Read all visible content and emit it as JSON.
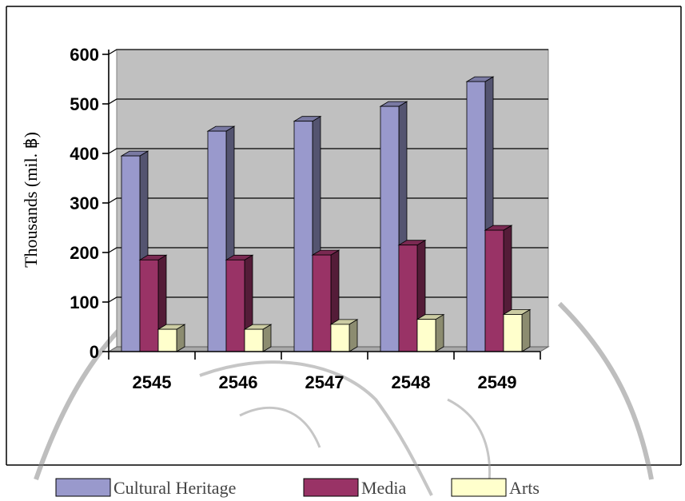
{
  "chart_data": {
    "type": "bar",
    "categories": [
      "2545",
      "2546",
      "2547",
      "2548",
      "2549"
    ],
    "series": [
      {
        "name": "Cultural  Heritage",
        "values": [
          395,
          445,
          465,
          495,
          545
        ],
        "color": "#9999cc"
      },
      {
        "name": "Media",
        "values": [
          185,
          185,
          195,
          215,
          245
        ],
        "color": "#993366"
      },
      {
        "name": "Arts",
        "values": [
          45,
          45,
          55,
          65,
          75
        ],
        "color": "#ffffcc"
      }
    ],
    "ylabel": "Thousands (mil. ฿)",
    "ylim": [
      0,
      600
    ],
    "yticks": [
      "0",
      "100",
      "200",
      "300",
      "400",
      "500",
      "600"
    ],
    "grid": true,
    "legend": "bottom",
    "plot_background": "#c0c0c0"
  }
}
